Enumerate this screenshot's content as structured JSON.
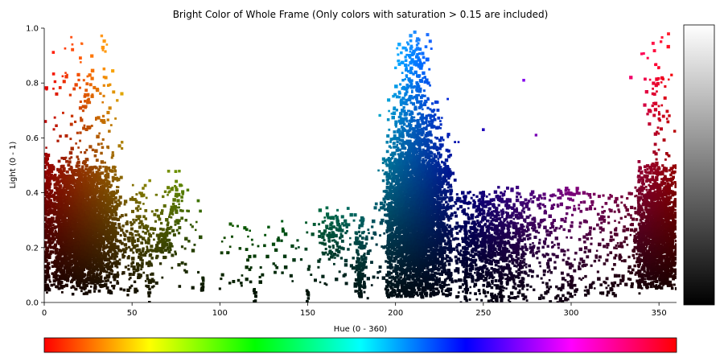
{
  "chart_data": {
    "type": "scatter",
    "title": "Bright Color of Whole Frame (Only colors with saturation > 0.15 are included)",
    "xlabel": "Hue (0 - 360)",
    "ylabel": "Light (0 - 1)",
    "xlim": [
      0,
      360
    ],
    "ylim": [
      0,
      1
    ],
    "x_ticks": [
      "0",
      "50",
      "100",
      "150",
      "200",
      "250",
      "300",
      "350"
    ],
    "y_ticks": [
      "0.0",
      "0.2",
      "0.4",
      "0.6",
      "0.8",
      "1.0"
    ],
    "grid": false,
    "point_color": "hue and lightness of each pixel (HSL)",
    "colorbars": {
      "horizontal": "hue spectrum 0-360",
      "vertical": "lightness gradient black to white"
    },
    "clusters": [
      {
        "hue_range": [
          0,
          45
        ],
        "light_range": [
          0.05,
          0.55
        ],
        "density": "very high"
      },
      {
        "hue_range": [
          0,
          40
        ],
        "light_range": [
          0.55,
          1.0
        ],
        "density": "sparse"
      },
      {
        "hue_range": [
          40,
          90
        ],
        "light_range": [
          0.0,
          0.48
        ],
        "density": "sparse"
      },
      {
        "hue_range": [
          90,
          185
        ],
        "light_range": [
          0.0,
          0.34
        ],
        "density": "sparse"
      },
      {
        "hue_range": [
          190,
          235
        ],
        "light_range": [
          0.02,
          0.99
        ],
        "density": "very high"
      },
      {
        "hue_range": [
          235,
          300
        ],
        "light_range": [
          0.02,
          0.42
        ],
        "density": "medium"
      },
      {
        "hue_range": [
          300,
          335
        ],
        "light_range": [
          0.02,
          0.42
        ],
        "density": "sparse"
      },
      {
        "hue_range": [
          335,
          360
        ],
        "light_range": [
          0.05,
          0.5
        ],
        "density": "high"
      },
      {
        "hue_range": [
          330,
          360
        ],
        "light_range": [
          0.5,
          0.97
        ],
        "density": "sparse"
      }
    ]
  }
}
